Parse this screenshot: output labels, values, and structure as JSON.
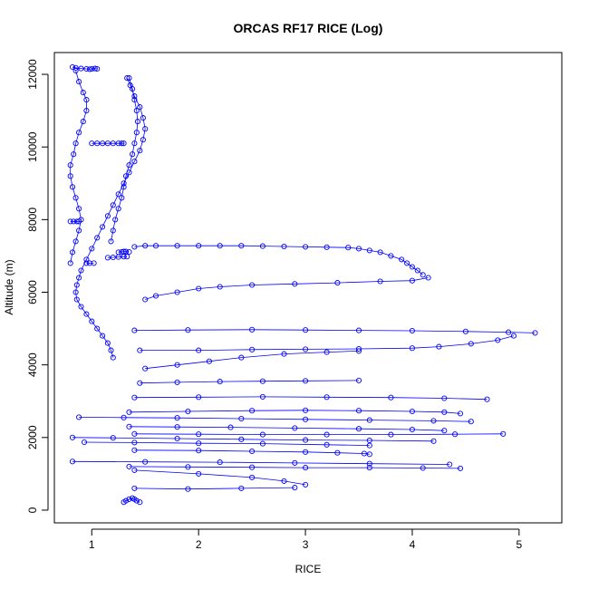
{
  "chart_data": {
    "type": "scatter",
    "title": "ORCAS RF17 RICE (Log)",
    "xlabel": "RICE",
    "ylabel": "Altitude (m)",
    "xlim": [
      0.65,
      5.4
    ],
    "ylim": [
      -350,
      12600
    ],
    "x_ticks": [
      1,
      2,
      3,
      4,
      5
    ],
    "y_ticks": [
      0,
      2000,
      4000,
      6000,
      8000,
      10000,
      12000
    ],
    "grid": false,
    "legend": "none",
    "series_color": "#0000ff",
    "marker": "open-circle",
    "connected": true,
    "profiles": [
      {
        "x": [
          0.82,
          0.85,
          0.9,
          0.95,
          0.98,
          1.0,
          1.03,
          1.05
        ],
        "y": [
          12200,
          12180,
          12160,
          12150,
          12140,
          12150,
          12160,
          12150
        ]
      },
      {
        "x": [
          0.85,
          0.88,
          0.92,
          0.95,
          0.95,
          0.92,
          0.88,
          0.85,
          0.83,
          0.8,
          0.8,
          0.82,
          0.85,
          0.88,
          0.9,
          0.88,
          0.85,
          0.82,
          0.8
        ],
        "y": [
          12100,
          11800,
          11500,
          11300,
          11000,
          10700,
          10400,
          10100,
          9800,
          9500,
          9200,
          8900,
          8600,
          8300,
          8000,
          7700,
          7400,
          7100,
          6800
        ]
      },
      {
        "x": [
          1.35,
          1.38,
          1.4,
          1.42,
          1.43,
          1.42,
          1.4,
          1.38,
          1.35,
          1.32,
          1.3,
          1.28,
          1.25,
          1.22,
          1.2,
          1.18
        ],
        "y": [
          11900,
          11600,
          11300,
          11000,
          10700,
          10400,
          10100,
          9800,
          9500,
          9200,
          8900,
          8600,
          8300,
          8000,
          7700,
          7400
        ]
      },
      {
        "x": [
          1.33,
          1.36,
          1.4,
          1.45,
          1.48,
          1.5,
          1.48,
          1.45,
          1.4,
          1.35,
          1.3,
          1.25,
          1.2,
          1.15,
          1.1,
          1.05,
          1.0,
          0.95,
          0.9,
          0.88,
          0.86,
          0.85,
          0.86,
          0.9,
          0.95,
          1.0,
          1.05,
          1.1,
          1.15,
          1.18,
          1.2
        ],
        "y": [
          11900,
          11700,
          11400,
          11100,
          10800,
          10500,
          10200,
          9900,
          9600,
          9300,
          9000,
          8700,
          8400,
          8100,
          7800,
          7500,
          7200,
          6900,
          6600,
          6400,
          6200,
          6000,
          5800,
          5600,
          5400,
          5200,
          5000,
          4800,
          4600,
          4400,
          4200
        ]
      },
      {
        "x": [
          1.0,
          1.05,
          1.1,
          1.15,
          1.2,
          1.25,
          1.28,
          1.3
        ],
        "y": [
          10100,
          10100,
          10100,
          10100,
          10100,
          10100,
          10100,
          10100
        ]
      },
      {
        "x": [
          0.8,
          0.83,
          0.86,
          0.88
        ],
        "y": [
          7950,
          7950,
          7950,
          7950
        ]
      },
      {
        "x": [
          1.15,
          1.2,
          1.25,
          1.3,
          1.33
        ],
        "y": [
          6950,
          6960,
          6970,
          6980,
          6980
        ]
      },
      {
        "x": [
          0.95,
          0.98,
          1.02
        ],
        "y": [
          6800,
          6800,
          6800
        ]
      },
      {
        "x": [
          1.25,
          1.28,
          1.3,
          1.32,
          1.35
        ],
        "y": [
          7100,
          7110,
          7120,
          7120,
          7110
        ]
      },
      {
        "x": [
          1.4,
          1.5,
          1.6,
          1.8,
          2.0,
          2.2,
          2.4,
          2.6,
          2.8,
          3.0,
          3.2,
          3.4,
          3.5,
          3.6,
          3.7,
          3.8,
          3.9,
          3.95,
          4.0,
          4.05,
          4.1
        ],
        "y": [
          7250,
          7280,
          7280,
          7280,
          7280,
          7280,
          7280,
          7270,
          7260,
          7250,
          7240,
          7230,
          7200,
          7150,
          7100,
          7000,
          6900,
          6800,
          6700,
          6600,
          6480
        ]
      },
      {
        "x": [
          1.5,
          1.6,
          1.8,
          2.0,
          2.2,
          2.5,
          2.9,
          3.3,
          3.7,
          4.0,
          4.15
        ],
        "y": [
          5800,
          5900,
          6000,
          6100,
          6150,
          6200,
          6230,
          6260,
          6300,
          6320,
          6400
        ]
      },
      {
        "x": [
          1.4,
          1.9,
          2.5,
          3.0,
          3.5,
          4.0,
          4.5,
          4.9,
          5.15
        ],
        "y": [
          4950,
          4960,
          4970,
          4960,
          4950,
          4940,
          4920,
          4900,
          4880
        ]
      },
      {
        "x": [
          1.45,
          2.0,
          2.5,
          3.0,
          3.5,
          4.0,
          4.25,
          4.55,
          4.8,
          4.95
        ],
        "y": [
          4400,
          4400,
          4420,
          4430,
          4440,
          4460,
          4500,
          4580,
          4680,
          4800
        ]
      },
      {
        "x": [
          1.5,
          1.8,
          2.1,
          2.4,
          2.8,
          3.2,
          3.5
        ],
        "y": [
          3900,
          4000,
          4100,
          4200,
          4300,
          4350,
          4380
        ]
      },
      {
        "x": [
          1.45,
          1.8,
          2.2,
          2.6,
          3.0,
          3.5
        ],
        "y": [
          3500,
          3520,
          3540,
          3550,
          3560,
          3570
        ]
      },
      {
        "x": [
          1.4,
          2.0,
          2.6,
          3.2,
          3.8,
          4.3,
          4.7
        ],
        "y": [
          3100,
          3110,
          3120,
          3110,
          3100,
          3080,
          3050
        ]
      },
      {
        "x": [
          1.35,
          1.9,
          2.5,
          3.0,
          3.5,
          4.0,
          4.3,
          4.45
        ],
        "y": [
          2700,
          2720,
          2740,
          2750,
          2740,
          2720,
          2700,
          2660
        ]
      },
      {
        "x": [
          0.88,
          1.3,
          1.8,
          2.4,
          3.0,
          3.6,
          4.2,
          4.55
        ],
        "y": [
          2560,
          2550,
          2540,
          2520,
          2500,
          2480,
          2460,
          2440
        ]
      },
      {
        "x": [
          1.35,
          1.8,
          2.3,
          2.9,
          3.5,
          4.0,
          4.3
        ],
        "y": [
          2300,
          2290,
          2280,
          2260,
          2240,
          2220,
          2190
        ]
      },
      {
        "x": [
          1.4,
          2.0,
          2.6,
          3.2,
          3.8,
          4.4,
          4.85
        ],
        "y": [
          2100,
          2090,
          2080,
          2080,
          2080,
          2090,
          2100
        ]
      },
      {
        "x": [
          0.82,
          1.2,
          1.8,
          2.4,
          3.0,
          3.6,
          4.2
        ],
        "y": [
          2000,
          1990,
          1970,
          1950,
          1930,
          1920,
          1900
        ]
      },
      {
        "x": [
          0.93,
          1.4,
          2.0,
          2.6,
          3.2,
          3.6
        ],
        "y": [
          1870,
          1860,
          1840,
          1830,
          1800,
          1780
        ]
      },
      {
        "x": [
          1.4,
          2.0,
          2.5,
          3.0,
          3.3,
          3.55,
          3.6
        ],
        "y": [
          1650,
          1640,
          1620,
          1600,
          1580,
          1560,
          1540
        ]
      },
      {
        "x": [
          0.82,
          1.5,
          2.2,
          2.9,
          3.6,
          4.35
        ],
        "y": [
          1340,
          1330,
          1320,
          1300,
          1280,
          1260
        ]
      },
      {
        "x": [
          1.35,
          1.9,
          2.5,
          3.0,
          3.6,
          4.1,
          4.45
        ],
        "y": [
          1200,
          1190,
          1180,
          1170,
          1170,
          1160,
          1150
        ]
      },
      {
        "x": [
          1.4,
          2.0,
          2.5,
          2.8,
          3.0
        ],
        "y": [
          1100,
          1000,
          900,
          800,
          700
        ]
      },
      {
        "x": [
          1.4,
          1.9,
          2.4,
          2.9
        ],
        "y": [
          600,
          580,
          600,
          620
        ]
      },
      {
        "x": [
          1.3,
          1.32,
          1.35,
          1.38,
          1.4,
          1.42,
          1.45
        ],
        "y": [
          220,
          260,
          300,
          330,
          300,
          260,
          220
        ]
      }
    ]
  }
}
